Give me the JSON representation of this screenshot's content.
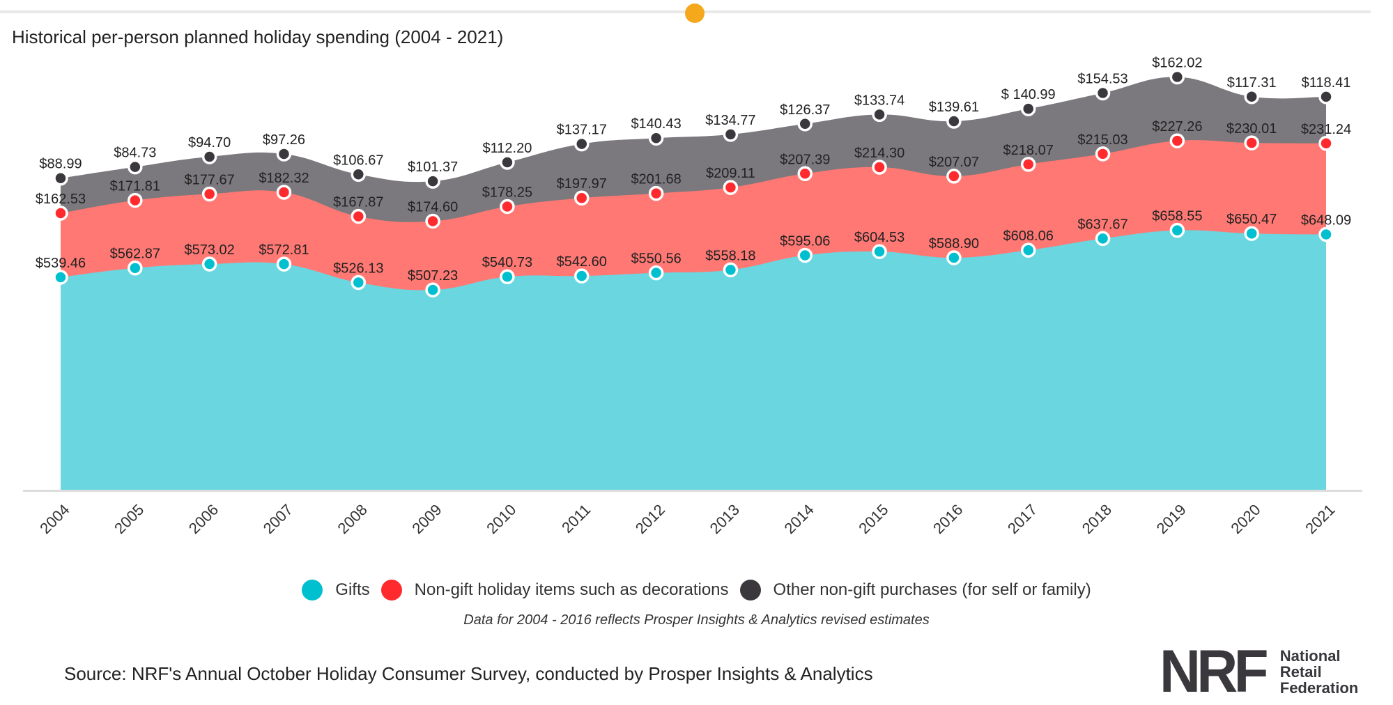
{
  "chart_data": {
    "type": "area",
    "stacked": true,
    "title": "Historical per-person planned holiday spending (2004 - 2021)",
    "xlabel": "",
    "ylabel": "",
    "ylim": [
      0,
      1100
    ],
    "grid": false,
    "legend_position": "bottom",
    "categories": [
      "2004",
      "2005",
      "2006",
      "2007",
      "2008",
      "2009",
      "2010",
      "2011",
      "2012",
      "2013",
      "2014",
      "2015",
      "2016",
      "2017",
      "2018",
      "2019",
      "2020",
      "2021"
    ],
    "series": [
      {
        "name": "Gifts",
        "fill": "#6ad6e0",
        "dot": "#00bfcf",
        "values": [
          539.46,
          562.87,
          573.02,
          572.81,
          526.13,
          507.23,
          540.73,
          542.6,
          550.56,
          558.18,
          595.06,
          604.53,
          588.9,
          608.06,
          637.67,
          658.55,
          650.47,
          648.09
        ],
        "labels": [
          "$539.46",
          "$562.87",
          "$573.02",
          "$572.81",
          "$526.13",
          "$507.23",
          "$540.73",
          "$542.60",
          "$550.56",
          "$558.18",
          "$595.06",
          "$604.53",
          "$588.90",
          "$608.06",
          "$637.67",
          "$658.55",
          "$650.47",
          "$648.09"
        ]
      },
      {
        "name": "Non-gift holiday items such as decorations",
        "fill": "#ff7873",
        "dot": "#ff2a2e",
        "values": [
          162.53,
          171.81,
          177.67,
          182.32,
          167.87,
          174.6,
          178.25,
          197.97,
          201.68,
          209.11,
          207.39,
          214.3,
          207.07,
          218.07,
          215.03,
          227.26,
          230.01,
          231.24
        ],
        "labels": [
          "$162.53",
          "$171.81",
          "$177.67",
          "$182.32",
          "$167.87",
          "$174.60",
          "$178.25",
          "$197.97",
          "$201.68",
          "$209.11",
          "$207.39",
          "$214.30",
          "$207.07",
          "$218.07",
          "$215.03",
          "$227.26",
          "$230.01",
          "$231.24"
        ]
      },
      {
        "name": "Other non-gift purchases (for self or family)",
        "fill": "#7b797d",
        "dot": "#3a383d",
        "values": [
          88.99,
          84.73,
          94.7,
          97.26,
          106.67,
          101.37,
          112.2,
          137.17,
          140.43,
          134.77,
          126.37,
          133.74,
          139.61,
          140.99,
          154.53,
          162.02,
          117.31,
          118.41
        ],
        "labels": [
          "$88.99",
          "$84.73",
          "$94.70",
          "$97.26",
          "$106.67",
          "$101.37",
          "$112.20",
          "$137.17",
          "$140.43",
          "$134.77",
          "$126.37",
          "$133.74",
          "$139.61",
          "$ 140.99",
          "$154.53",
          "$162.02",
          "$117.31",
          "$118.41"
        ]
      }
    ],
    "note": "Data for 2004 - 2016 reflects Prosper Insights & Analytics revised estimates",
    "source": "Source: NRF's Annual October Holiday Consumer Survey, conducted by Prosper Insights & Analytics"
  },
  "logo": {
    "mark": "NRF",
    "text": [
      "National",
      "Retail",
      "Federation"
    ]
  },
  "accent": "#f5a81c"
}
